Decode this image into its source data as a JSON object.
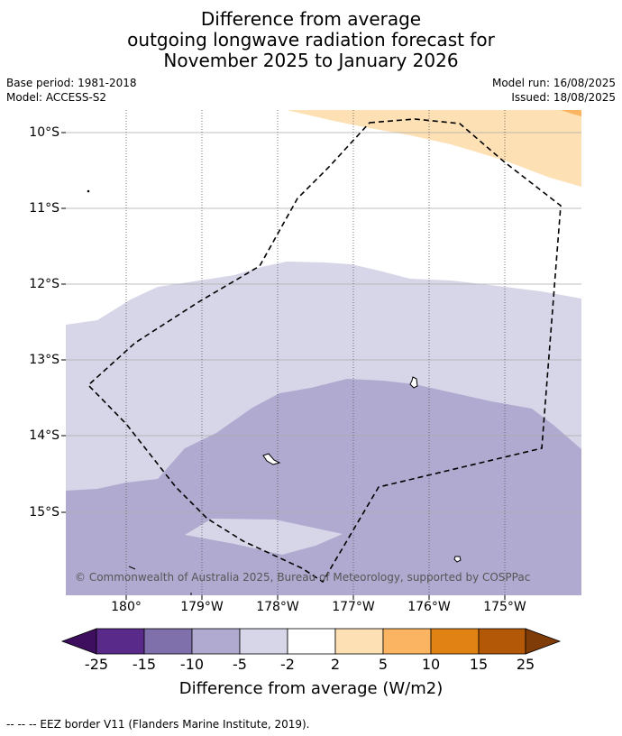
{
  "title_lines": [
    "Difference from average",
    "outgoing longwave radiation forecast for",
    "November 2025 to January 2026"
  ],
  "base_period": "Base period: 1981-2018",
  "model": "Model: ACCESS-S2",
  "model_run": "Model run: 16/08/2025",
  "issued": "Issued: 18/08/2025",
  "map": {
    "lat_labels": [
      "10°S",
      "11°S",
      "12°S",
      "13°S",
      "14°S",
      "15°S"
    ],
    "lon_labels": [
      "180°",
      "179°W",
      "178°W",
      "177°W",
      "176°W",
      "175°W"
    ],
    "copyright": "© Commonwealth of Australia 2025, Bureau of Meteorology, supported by COSPPac",
    "colors": {
      "minus5_to_minus2": "#d6d6e8",
      "minus10_to_minus5": "#b0aad0",
      "plus2_to_plus5": "#fde0b4",
      "plus5_to_plus10": "#fbb562",
      "eez_border": "#000000"
    }
  },
  "colorbar": {
    "ticks": [
      "-25",
      "-15",
      "-10",
      "-5",
      "-2",
      "2",
      "5",
      "10",
      "15",
      "25"
    ],
    "colors": [
      "#3f0f5f",
      "#5a2a8a",
      "#7f6fab",
      "#b0aad0",
      "#d6d6e8",
      "#ffffff",
      "#fde0b4",
      "#fbb562",
      "#e08214",
      "#b35806",
      "#7f3b08"
    ],
    "label": "Difference from average (W/m2)"
  },
  "legend_note": "-- -- -- EEZ border V11 (Flanders Marine Institute, 2019)."
}
